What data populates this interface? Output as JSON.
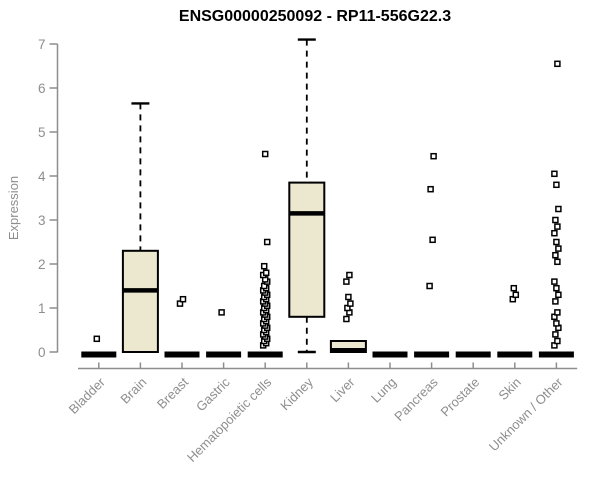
{
  "chart_data": {
    "type": "boxplot",
    "title": "ENSG00000250092 - RP11-556G22.3",
    "ylabel": "Expression",
    "ylim": [
      0,
      7
    ],
    "yticks": [
      0,
      1,
      2,
      3,
      4,
      5,
      6,
      7
    ],
    "x_tick_rotation": 45,
    "grid": false,
    "colors": {
      "box_fill": "#ece7cf",
      "box_stroke": "#000000",
      "axis": "#8e8e8e",
      "tick_text": "#8e8e8e",
      "title_text": "#000000"
    },
    "categories": [
      "Bladder",
      "Brain",
      "Breast",
      "Gastric",
      "Hematopoietic cells",
      "Kidney",
      "Liver",
      "Lung",
      "Pancreas",
      "Prostate",
      "Skin",
      "Unknown / Other"
    ],
    "boxes": [
      {
        "category": "Bladder",
        "q1": 0,
        "median": 0,
        "q3": 0,
        "whisker_low": 0,
        "whisker_high": 0,
        "outliers": [
          0.3
        ]
      },
      {
        "category": "Brain",
        "q1": 0,
        "median": 1.4,
        "q3": 2.3,
        "whisker_low": 0,
        "whisker_high": 5.65,
        "outliers": []
      },
      {
        "category": "Breast",
        "q1": 0,
        "median": 0,
        "q3": 0,
        "whisker_low": 0,
        "whisker_high": 0,
        "outliers": [
          1.1,
          1.2
        ]
      },
      {
        "category": "Gastric",
        "q1": 0,
        "median": 0,
        "q3": 0,
        "whisker_low": 0,
        "whisker_high": 0,
        "outliers": [
          0.9
        ]
      },
      {
        "category": "Hematopoietic cells",
        "q1": 0,
        "median": 0,
        "q3": 0,
        "whisker_low": 0,
        "whisker_high": 0,
        "outliers": [
          0.15,
          0.2,
          0.25,
          0.3,
          0.35,
          0.4,
          0.45,
          0.5,
          0.55,
          0.6,
          0.65,
          0.7,
          0.75,
          0.8,
          0.85,
          0.9,
          0.95,
          1.0,
          1.05,
          1.1,
          1.15,
          1.2,
          1.25,
          1.3,
          1.35,
          1.4,
          1.45,
          1.5,
          1.6,
          1.65,
          1.75,
          1.8,
          1.95,
          2.5,
          4.5
        ]
      },
      {
        "category": "Kidney",
        "q1": 0.8,
        "median": 3.15,
        "q3": 3.85,
        "whisker_low": 0,
        "whisker_high": 7.1,
        "outliers": []
      },
      {
        "category": "Liver",
        "q1": 0,
        "median": 0.04,
        "q3": 0.25,
        "whisker_low": 0,
        "whisker_high": 0.25,
        "outliers": [
          0.75,
          0.9,
          1.0,
          1.1,
          1.25,
          1.6,
          1.75
        ]
      },
      {
        "category": "Lung",
        "q1": 0,
        "median": 0,
        "q3": 0,
        "whisker_low": 0,
        "whisker_high": 0,
        "outliers": []
      },
      {
        "category": "Pancreas",
        "q1": 0,
        "median": 0,
        "q3": 0,
        "whisker_low": 0,
        "whisker_high": 0,
        "outliers": [
          1.5,
          2.55,
          3.7,
          4.45
        ]
      },
      {
        "category": "Prostate",
        "q1": 0,
        "median": 0,
        "q3": 0,
        "whisker_low": 0,
        "whisker_high": 0,
        "outliers": []
      },
      {
        "category": "Skin",
        "q1": 0,
        "median": 0,
        "q3": 0,
        "whisker_low": 0,
        "whisker_high": 0,
        "outliers": [
          1.2,
          1.3,
          1.45
        ]
      },
      {
        "category": "Unknown / Other",
        "q1": 0,
        "median": 0,
        "q3": 0,
        "whisker_low": 0,
        "whisker_high": 0,
        "outliers": [
          0.15,
          0.25,
          0.4,
          0.55,
          0.65,
          0.8,
          0.9,
          1.15,
          1.3,
          1.45,
          1.6,
          2.05,
          2.2,
          2.35,
          2.5,
          2.7,
          2.85,
          3.0,
          3.25,
          3.8,
          4.05,
          6.55
        ]
      }
    ]
  }
}
